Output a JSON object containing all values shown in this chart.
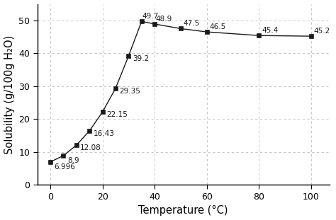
{
  "temperature": [
    0,
    5,
    10,
    15,
    20,
    25,
    30,
    35,
    40,
    50,
    60,
    80,
    100
  ],
  "solubility": [
    6.996,
    8.9,
    12.08,
    16.43,
    22.15,
    29.35,
    39.2,
    49.7,
    48.9,
    47.5,
    46.5,
    45.4,
    45.2
  ],
  "labels": [
    "6.996",
    "8.9",
    "12.08",
    "16.43",
    "22.15",
    "29.35",
    "39.2",
    "49.7",
    "48.9",
    "47.5",
    "46.5",
    "45.4",
    "45.2"
  ],
  "label_offsets_x": [
    1.5,
    1.5,
    1.5,
    1.5,
    1.5,
    1.5,
    1.5,
    0.3,
    0.3,
    1.0,
    1.0,
    1.0,
    1.0
  ],
  "label_offsets_y": [
    -1.5,
    -1.5,
    -0.8,
    -0.8,
    -0.8,
    -0.8,
    -0.8,
    1.5,
    1.5,
    1.5,
    1.5,
    1.5,
    1.5
  ],
  "xlabel": "Temperature (°C)",
  "ylabel": "Solubility (g/100g H₂O)",
  "xlim": [
    -5,
    107
  ],
  "ylim": [
    0,
    55
  ],
  "xticks": [
    0,
    20,
    40,
    60,
    80,
    100
  ],
  "yticks": [
    0,
    10,
    20,
    30,
    40,
    50
  ],
  "line_color": "#1a1a1a",
  "marker_color": "#1a1a1a",
  "grid_color": "#bbbbbb",
  "background_color": "#ffffff",
  "label_fontsize": 7.5,
  "axis_label_fontsize": 10.5,
  "tick_fontsize": 9
}
